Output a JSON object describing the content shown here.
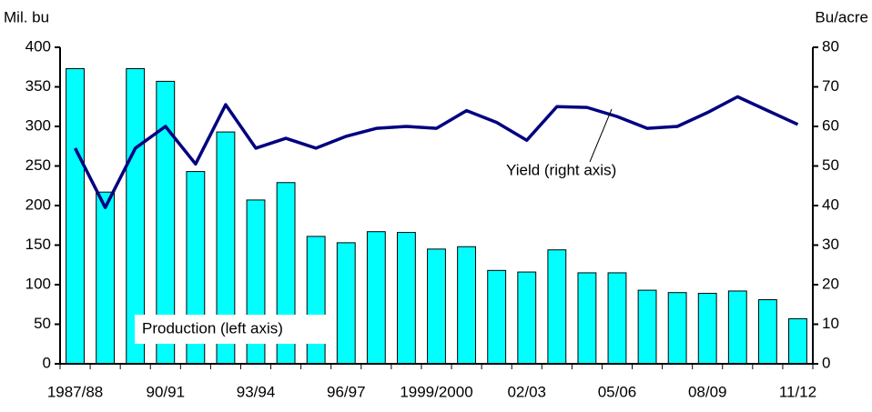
{
  "chart_data": {
    "type": "bar_line",
    "y_label": "Mil. bu",
    "y2_label": "Bu/acre",
    "categories": [
      "1987/88",
      null,
      null,
      "90/91",
      null,
      null,
      "93/94",
      null,
      null,
      "96/97",
      null,
      null,
      "1999/2000",
      null,
      null,
      "02/03",
      null,
      null,
      "05/06",
      null,
      null,
      "08/09",
      null,
      null,
      "11/12"
    ],
    "series": [
      {
        "name": "Production (left axis)",
        "type": "bar",
        "color": "#00ffff",
        "values": [
          373,
          217,
          373,
          357,
          243,
          293,
          207,
          229,
          161,
          153,
          167,
          166,
          145,
          148,
          118,
          116,
          144,
          115,
          115,
          93,
          90,
          89,
          92,
          81,
          57
        ]
      },
      {
        "name": "Yield (right axis)",
        "type": "line",
        "axis": "y2",
        "color": "#000080",
        "values": [
          54.5,
          39.5,
          54.5,
          60,
          50.5,
          65.5,
          54.5,
          57,
          54.5,
          57.5,
          59.5,
          60,
          59.5,
          64,
          61,
          56.5,
          65,
          64.8,
          62.5,
          59.5,
          60,
          63.5,
          67.5,
          64,
          60.5
        ]
      }
    ],
    "ylim": [
      0,
      400
    ],
    "yticks": [
      0,
      50,
      100,
      150,
      200,
      250,
      300,
      350,
      400
    ],
    "y2lim": [
      0,
      80
    ],
    "y2ticks": [
      0,
      10,
      20,
      30,
      40,
      50,
      60,
      70,
      80
    ]
  }
}
